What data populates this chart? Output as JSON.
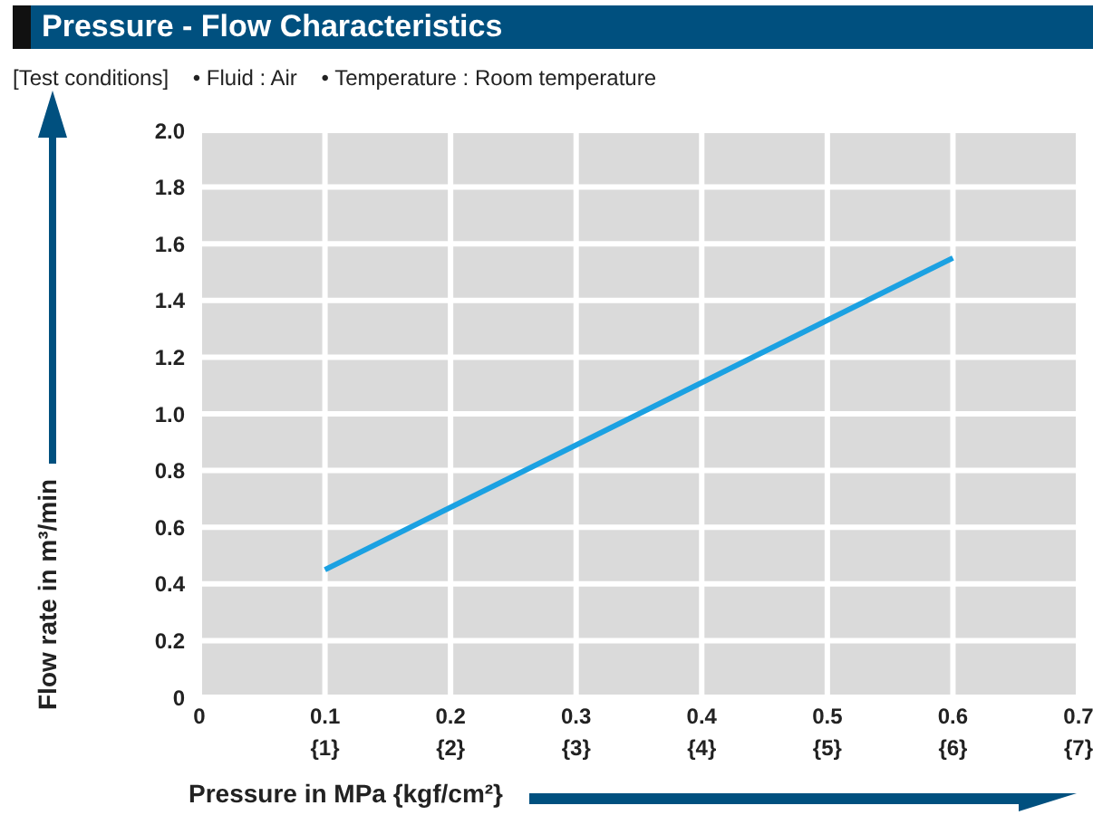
{
  "chart_data": {
    "type": "line",
    "title": "Pressure - Flow Characteristics",
    "subtitle": "[Test conditions]    • Fluid : Air    • Temperature : Room temperature",
    "xlabel": "Pressure in MPa {kgf/cm²}",
    "ylabel": "Flow rate in m³/min",
    "series": [
      {
        "color": "#1ba1e2",
        "x": [
          0.1,
          0.6
        ],
        "values": [
          0.45,
          1.55
        ]
      }
    ],
    "xlim": [
      0,
      0.7
    ],
    "xticks": [
      0,
      0.1,
      0.2,
      0.3,
      0.4,
      0.5,
      0.6,
      0.7
    ],
    "x2lim": [
      0,
      7
    ],
    "x2ticks": [
      {
        "value": 0,
        "label": null
      },
      {
        "value": 1,
        "label": "{1}"
      },
      {
        "value": 2,
        "label": "{2}"
      },
      {
        "value": 3,
        "label": "{3}"
      },
      {
        "value": 4,
        "label": "{4}"
      },
      {
        "value": 5,
        "label": "{5}"
      },
      {
        "value": 6,
        "label": "{6}"
      },
      {
        "value": 7,
        "label": "{7}"
      }
    ],
    "ylim": [
      0,
      2
    ],
    "yticks": [
      0,
      0.2,
      0.4,
      0.6,
      0.8,
      {
        "value": 1,
        "label": "1.0"
      },
      1.2,
      1.4,
      1.6,
      1.8,
      {
        "value": 2,
        "label": "2.0"
      }
    ],
    "grid": true,
    "marker": "none",
    "line_style": "solid"
  }
}
